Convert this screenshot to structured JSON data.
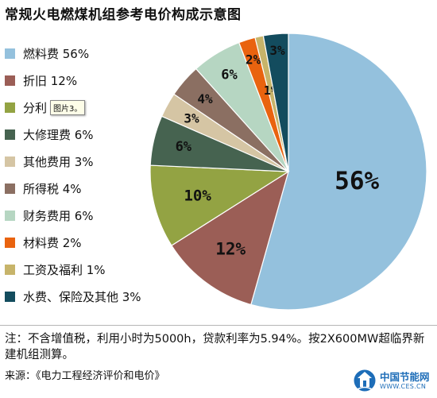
{
  "title": "常规火电燃煤机组参考电价构成示意图",
  "chart_data": {
    "type": "pie",
    "title": "常规火电燃煤机组参考电价构成示意图",
    "legend_position": "left",
    "slices": [
      {
        "name": "燃料费",
        "value": 56,
        "label": "56%",
        "color": "#94c1dd"
      },
      {
        "name": "折旧",
        "value": 12,
        "label": "12%",
        "color": "#9b5e56"
      },
      {
        "name": "分利",
        "value": 10,
        "label": "10%",
        "color": "#93a343"
      },
      {
        "name": "大修理费",
        "value": 6,
        "label": "6%",
        "color": "#466350"
      },
      {
        "name": "其他费用",
        "value": 3,
        "label": "3%",
        "color": "#d5c5a4"
      },
      {
        "name": "所得税",
        "value": 4,
        "label": "4%",
        "color": "#8b6f62"
      },
      {
        "name": "财务费用",
        "value": 6,
        "label": "6%",
        "color": "#b6d6c2"
      },
      {
        "name": "材料费",
        "value": 2,
        "label": "2%",
        "color": "#e9630f"
      },
      {
        "name": "工资及福利",
        "value": 1,
        "label": "1%",
        "color": "#c7b46a"
      },
      {
        "name": "水费、保险及其他",
        "value": 3,
        "label": "3%",
        "color": "#134c5e"
      }
    ]
  },
  "legend": [
    {
      "text": "燃料费 56%",
      "color": "#94c1dd"
    },
    {
      "text": "折旧 12%",
      "color": "#9b5e56"
    },
    {
      "text": "分利",
      "color": "#93a343"
    },
    {
      "text": "大修理费 6%",
      "color": "#466350"
    },
    {
      "text": "其他费用 3%",
      "color": "#d5c5a4"
    },
    {
      "text": "所得税 4%",
      "color": "#8b6f62"
    },
    {
      "text": "财务费用 6%",
      "color": "#b6d6c2"
    },
    {
      "text": "材料费 2%",
      "color": "#e9630f"
    },
    {
      "text": "工资及福利 1%",
      "color": "#c7b46a"
    },
    {
      "text": "水费、保险及其他 3%",
      "color": "#134c5e"
    }
  ],
  "tooltip": "图片3。",
  "note": "注：不含增值税，利用小时为5000h，贷款利率为5.94%。按2X600MW超临界新建机组测算。",
  "source": "来源：《电力工程经济评价和电价》",
  "logo": {
    "name": "中国节能网",
    "url": "WWW.CES.CN",
    "icon": "ces-logo-icon",
    "color": "#1d6db8"
  }
}
